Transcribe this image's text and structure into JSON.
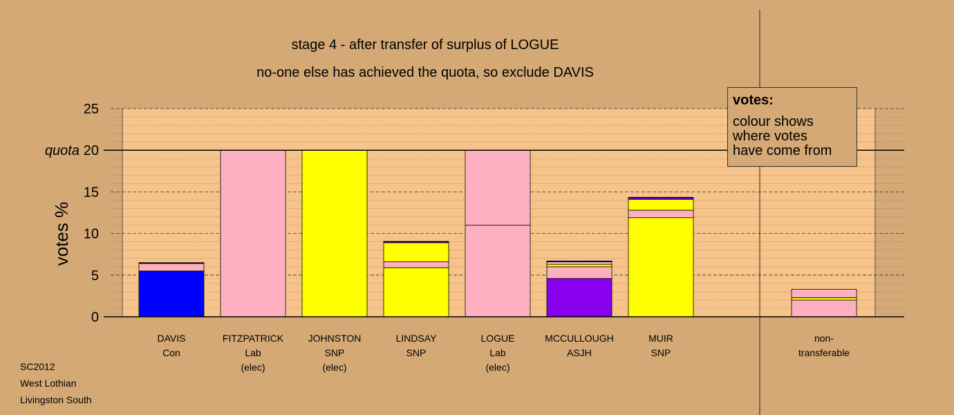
{
  "page": {
    "title_line1": "stage 4 - after transfer of surplus of LOGUE",
    "title_line2": "no-one else has achieved the quota, so exclude DAVIS",
    "footer": [
      "SC2012",
      "West Lothian",
      "Livingston South"
    ]
  },
  "legend": {
    "title": "votes:",
    "lines": [
      "colour shows",
      "where votes",
      "have come from"
    ]
  },
  "colors": {
    "background": "#d4a976",
    "plot_background": "#f6c48a",
    "Con": "#0000ff",
    "Lab": "#ffb0c0",
    "SNP": "#ffff00",
    "ASJH": "#8800ee"
  },
  "chart_data": {
    "type": "bar",
    "stacked": true,
    "ylabel": "votes %",
    "ylim": [
      0,
      25
    ],
    "yticks": [
      0,
      5,
      10,
      15,
      20,
      25
    ],
    "quota": {
      "label": "quota",
      "value": 20
    },
    "grid": true,
    "categories": [
      {
        "name": "DAVIS",
        "party": "Con",
        "status": ""
      },
      {
        "name": "FITZPATRICK",
        "party": "Lab",
        "status": "(elec)"
      },
      {
        "name": "JOHNSTON",
        "party": "SNP",
        "status": "(elec)"
      },
      {
        "name": "LINDSAY",
        "party": "SNP",
        "status": ""
      },
      {
        "name": "LOGUE",
        "party": "Lab",
        "status": "(elec)"
      },
      {
        "name": "MCCULLOUGH",
        "party": "ASJH",
        "status": ""
      },
      {
        "name": "MUIR",
        "party": "SNP",
        "status": ""
      },
      {
        "name": "",
        "party": "",
        "status": ""
      },
      {
        "name": "non-",
        "party": "transferable",
        "status": ""
      }
    ],
    "stacks": [
      [
        {
          "source": "Con",
          "value": 5.5
        },
        {
          "source": "Lab",
          "value": 0.9
        },
        {
          "source": "SNP",
          "value": 0.05
        },
        {
          "source": "ASJH",
          "value": 0.05
        }
      ],
      [
        {
          "source": "Lab",
          "value": 20.0
        }
      ],
      [
        {
          "source": "SNP",
          "value": 20.0
        }
      ],
      [
        {
          "source": "SNP",
          "value": 5.9
        },
        {
          "source": "Lab",
          "value": 0.7
        },
        {
          "source": "SNP",
          "value": 2.3
        },
        {
          "source": "ASJH",
          "value": 0.1
        },
        {
          "source": "Con",
          "value": 0.05
        }
      ],
      [
        {
          "source": "Lab",
          "value": 11.0
        },
        {
          "source": "Lab",
          "value": 9.0
        }
      ],
      [
        {
          "source": "ASJH",
          "value": 4.6
        },
        {
          "source": "Lab",
          "value": 1.4
        },
        {
          "source": "SNP",
          "value": 0.3
        },
        {
          "source": "Lab",
          "value": 0.3
        },
        {
          "source": "Con",
          "value": 0.1
        }
      ],
      [
        {
          "source": "SNP",
          "value": 11.9
        },
        {
          "source": "Lab",
          "value": 0.9
        },
        {
          "source": "SNP",
          "value": 1.3
        },
        {
          "source": "ASJH",
          "value": 0.2
        },
        {
          "source": "Con",
          "value": 0.05
        }
      ],
      [],
      [
        {
          "source": "Lab",
          "value": 2.0
        },
        {
          "source": "SNP",
          "value": 0.3
        },
        {
          "source": "Lab",
          "value": 1.0
        }
      ]
    ]
  }
}
